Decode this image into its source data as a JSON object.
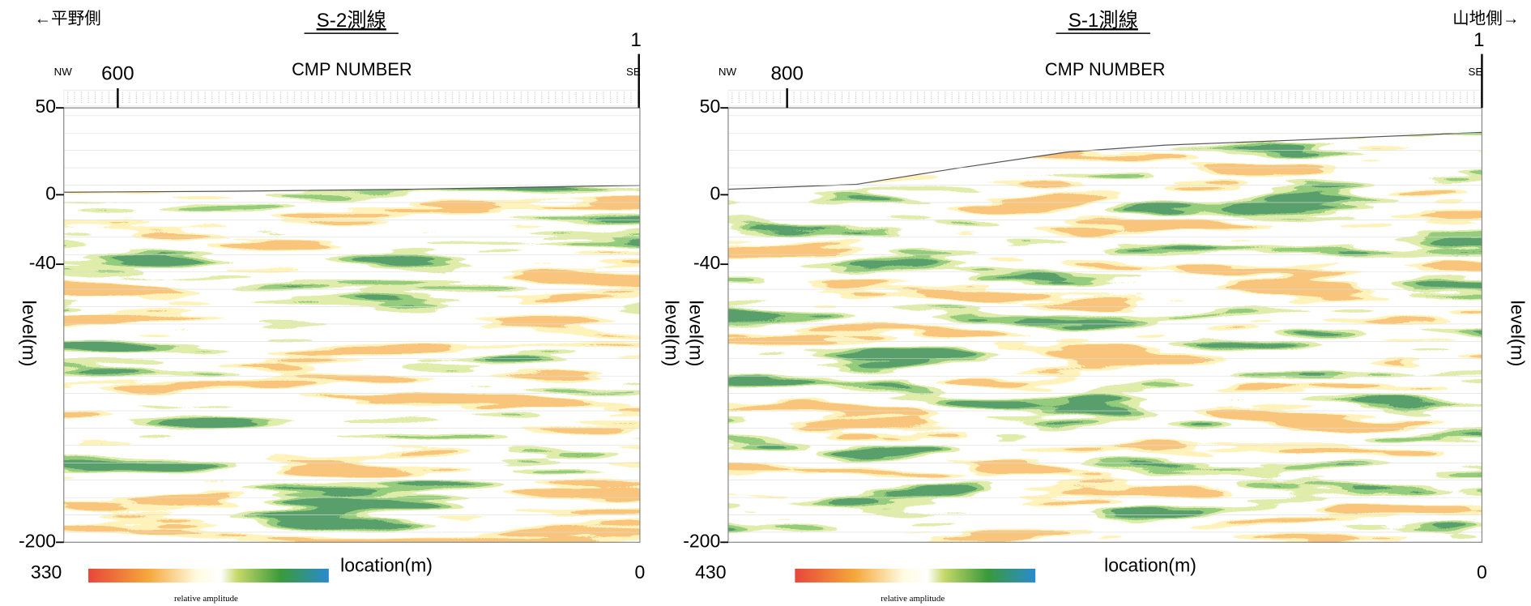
{
  "header": {
    "left": "←平野側",
    "right": "山地側→"
  },
  "panels": [
    {
      "title": "S-2測線",
      "cmp_axis": {
        "label": "CMP NUMBER",
        "ticks": [
          600,
          1
        ],
        "left_direction": "NW",
        "right_direction": "SE"
      },
      "y_axis": {
        "label": "level(m)",
        "ticks": [
          50,
          0,
          -40,
          -200
        ]
      },
      "x_axis": {
        "label": "location(m)",
        "ends": [
          330,
          0
        ]
      },
      "legend": "relative amplitude"
    },
    {
      "title": "S-1測線",
      "cmp_axis": {
        "label": "CMP NUMBER",
        "ticks": [
          800,
          1
        ],
        "left_direction": "NW",
        "right_direction": "SE"
      },
      "y_axis": {
        "label": "level(m)",
        "ticks": [
          50,
          0,
          -40,
          -200
        ]
      },
      "x_axis": {
        "label": "location(m)",
        "ends": [
          430,
          0
        ]
      },
      "legend": "relative amplitude"
    }
  ]
}
